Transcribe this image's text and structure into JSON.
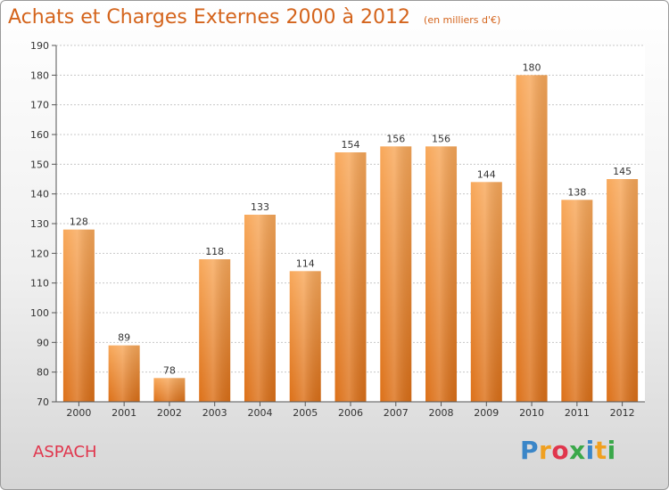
{
  "chart_data": {
    "type": "bar",
    "title": "Achats et Charges Externes 2000 à 2012",
    "subtitle": "(en milliers d'€)",
    "xlabel": "",
    "ylabel": "",
    "categories": [
      "2000",
      "2001",
      "2002",
      "2003",
      "2004",
      "2005",
      "2006",
      "2007",
      "2008",
      "2009",
      "2010",
      "2011",
      "2012"
    ],
    "values": [
      128,
      89,
      78,
      118,
      133,
      114,
      154,
      156,
      156,
      144,
      180,
      138,
      145
    ],
    "ylim": [
      70,
      190
    ],
    "yticks": [
      70,
      80,
      90,
      100,
      110,
      120,
      130,
      140,
      150,
      160,
      170,
      180,
      190
    ],
    "grid": true,
    "bar_color": "#f08a30"
  },
  "location": "ASPACH",
  "brand": {
    "name": "Proxiti",
    "letters": [
      "P",
      "r",
      "o",
      "x",
      "i",
      "t",
      "i"
    ],
    "letter_colors": [
      "#3a86c8",
      "#f0a020",
      "#e0364d",
      "#3aa84a",
      "#3a86c8",
      "#f0a020",
      "#3aa84a"
    ]
  }
}
